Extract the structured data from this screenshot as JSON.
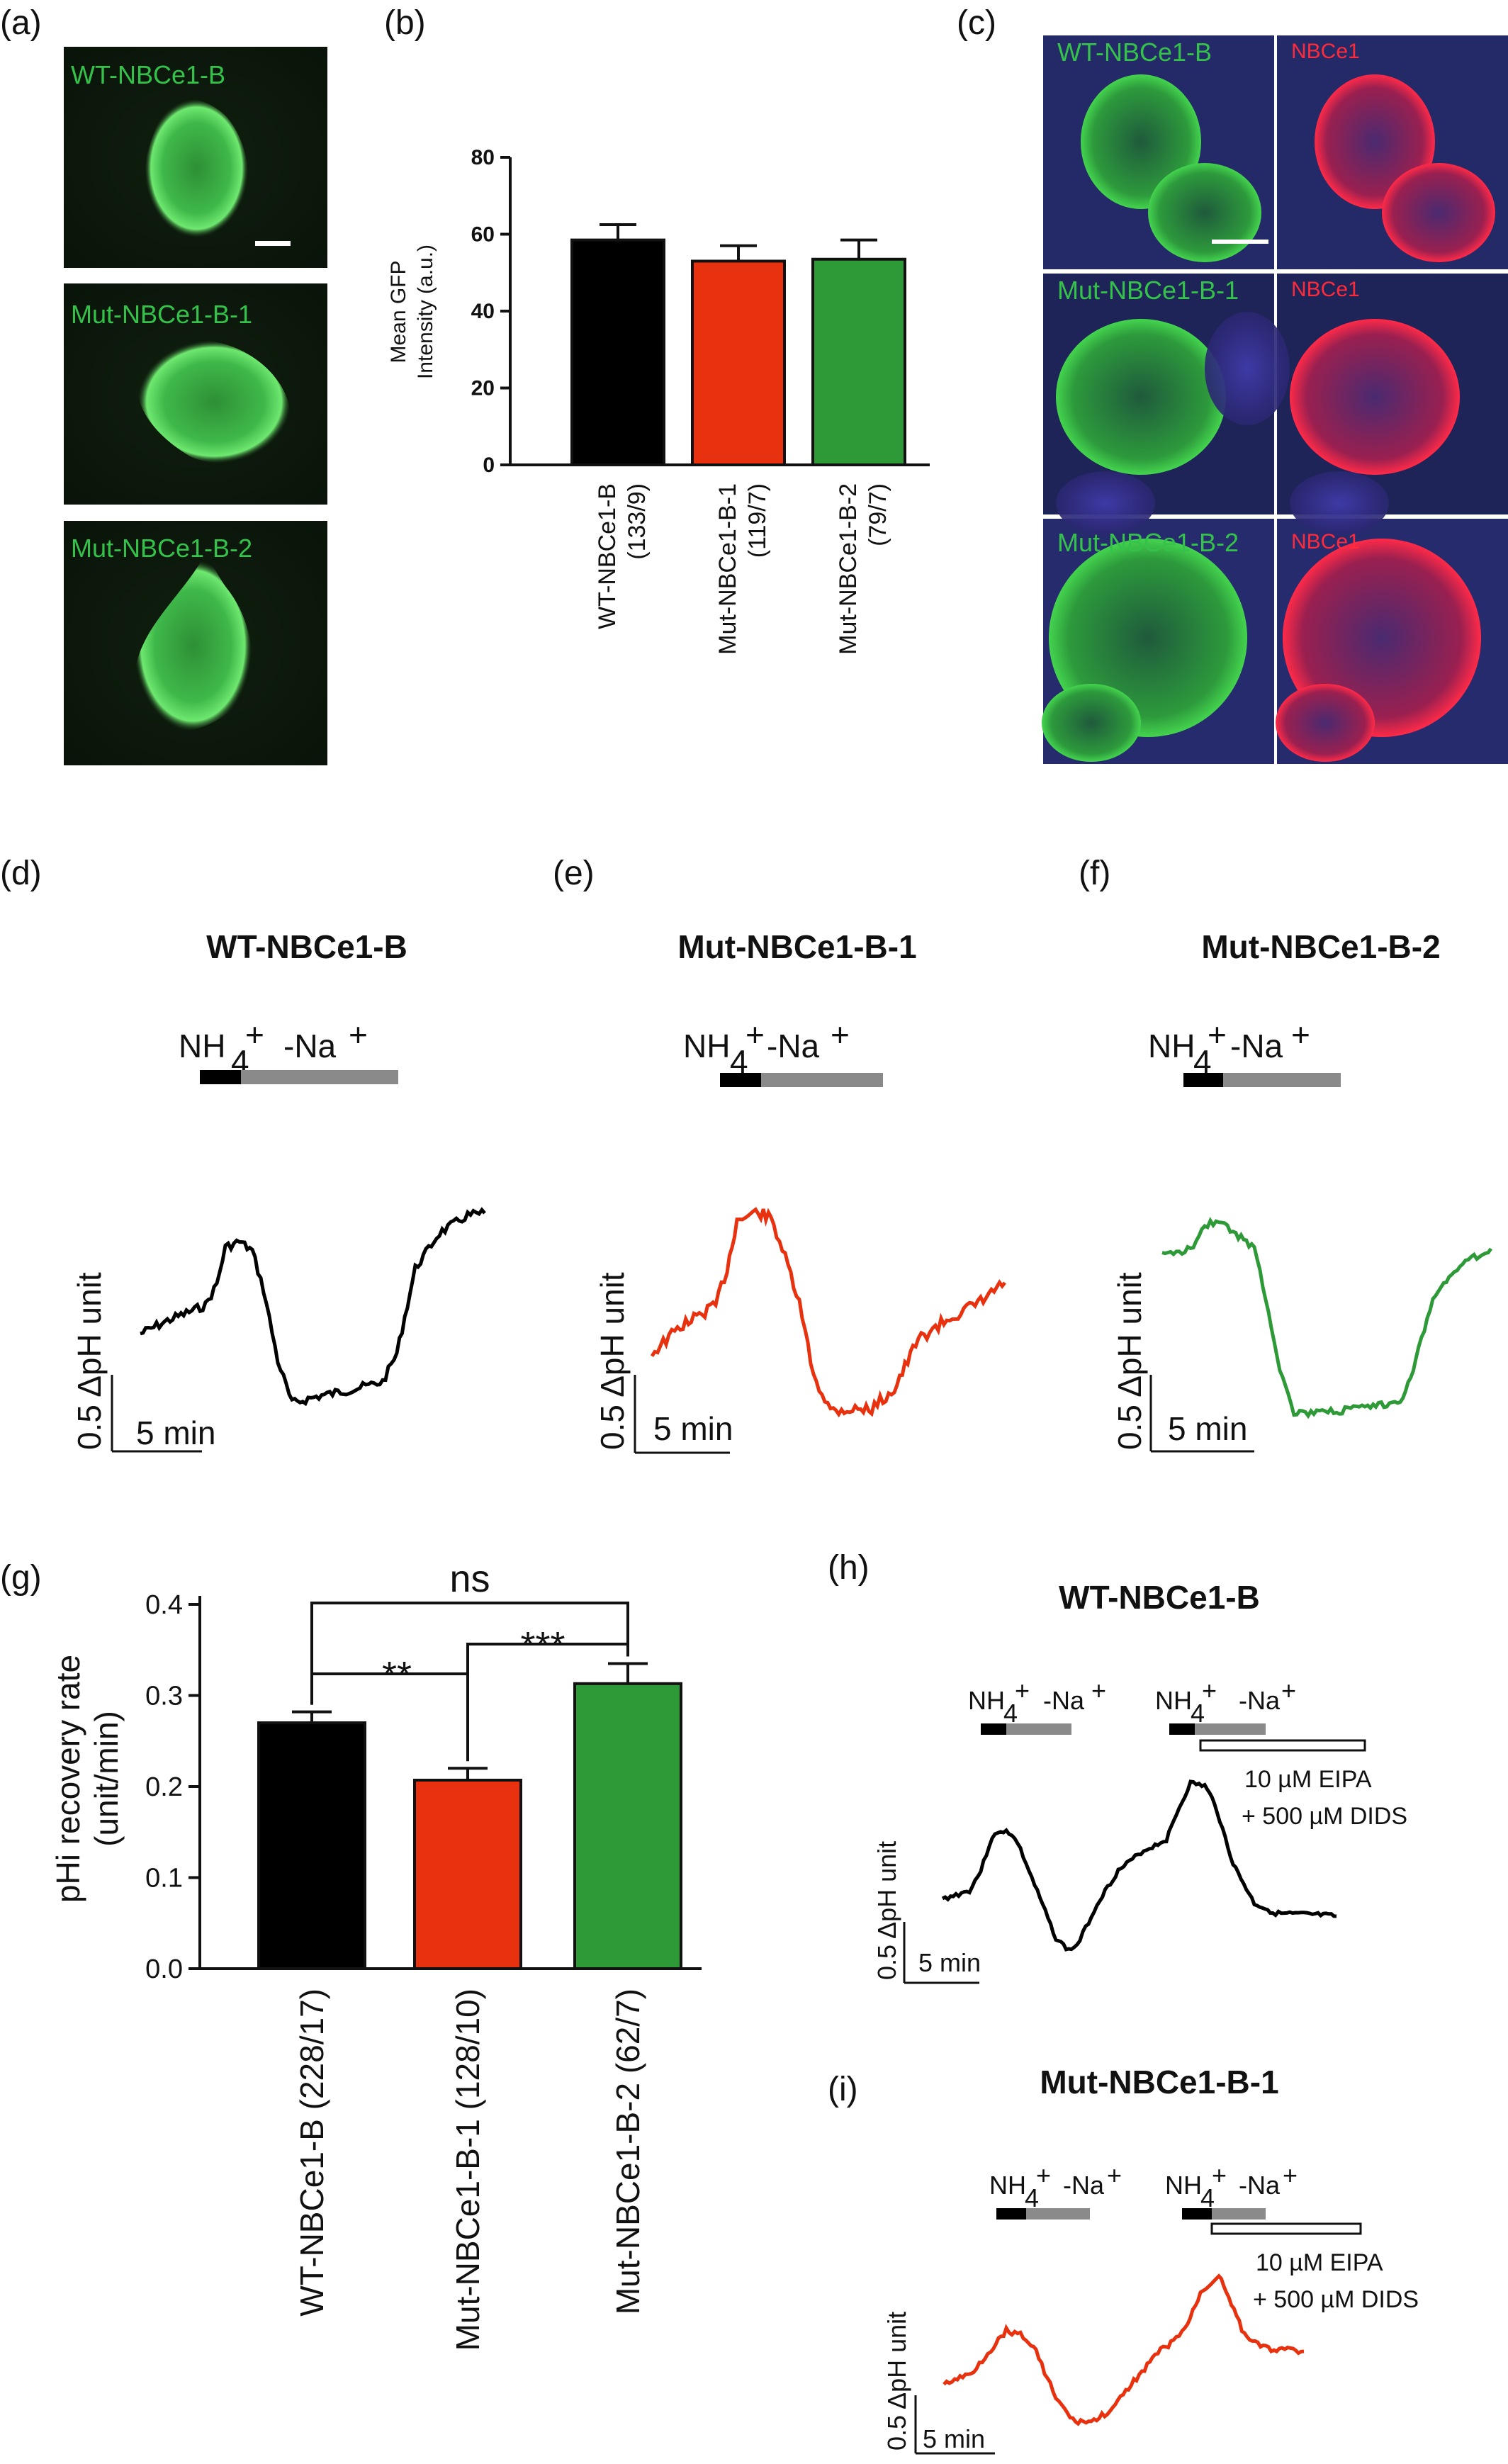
{
  "panels": {
    "a": "(a)",
    "b": "(b)",
    "c": "(c)",
    "d": "(d)",
    "e": "(e)",
    "f": "(f)",
    "g": "(g)",
    "h": "(h)",
    "i": "(i)"
  },
  "micrographs_a": [
    {
      "label": "WT-NBCe1-B"
    },
    {
      "label": "Mut-NBCe1-B-1"
    },
    {
      "label": "Mut-NBCe1-B-2"
    }
  ],
  "micrographs_c": [
    {
      "green_label": "WT-NBCe1-B",
      "red_label": "NBCe1"
    },
    {
      "green_label": "Mut-NBCe1-B-1",
      "red_label": "NBCe1"
    },
    {
      "green_label": "Mut-NBCe1-B-2",
      "red_label": "NBCe1"
    }
  ],
  "colors": {
    "wt": "#000000",
    "mut1": "#e8320f",
    "mut2": "#2e9a37",
    "gfp": "#3fd65a",
    "stain": "#ff2a3a",
    "nucleus": "#3f3aa0"
  },
  "traces": {
    "d": {
      "title": "WT-NBCe1-B"
    },
    "e": {
      "title": "Mut-NBCe1-B-1"
    },
    "f": {
      "title": "Mut-NBCe1-B-2"
    },
    "h": {
      "title": "WT-NBCe1-B",
      "drug_line1": "10 µM EIPA",
      "drug_line2": "+ 500 µM DIDS"
    },
    "i": {
      "title": "Mut-NBCe1-B-1",
      "drug_line1": "10 µM EIPA",
      "drug_line2": "+ 500 µM DIDS"
    }
  },
  "ions": {
    "nh": "NH",
    "sub": "4",
    "sup": "+",
    "na": "-Na",
    "na_sup": "+"
  },
  "scalebar": {
    "ph": "0.5 ΔpH unit",
    "time": "5 min"
  },
  "chart_data": [
    {
      "panel": "b",
      "type": "bar",
      "categories": [
        "WT-NBCe1-B",
        "Mut-NBCe1-B-1",
        "Mut-NBCe1-B-2"
      ],
      "category_counts": [
        "(133/9)",
        "(119/7)",
        "(79/7)"
      ],
      "values": [
        58.5,
        53,
        53.5
      ],
      "errors": [
        4,
        4,
        5
      ],
      "colors": [
        "#000000",
        "#e8320f",
        "#2e9a37"
      ],
      "ylabel_line1": "Mean GFP",
      "ylabel_line2": "Intensity (a.u.)",
      "ylim": [
        0,
        80
      ],
      "yticks": [
        "0",
        "20",
        "40",
        "60",
        "80"
      ]
    },
    {
      "panel": "g",
      "type": "bar",
      "categories": [
        "WT-NBCe1-B (228/17)",
        "Mut-NBCe1-B-1 (128/10)",
        "Mut-NBCe1-B-2 (62/7)"
      ],
      "values": [
        0.27,
        0.207,
        0.313
      ],
      "errors": [
        0.012,
        0.013,
        0.022
      ],
      "colors": [
        "#000000",
        "#e8320f",
        "#2e9a37"
      ],
      "ylabel_line1": "pHi recovery rate",
      "ylabel_line2": "(unit/min)",
      "ylim": [
        0,
        0.4
      ],
      "yticks": [
        "0.0",
        "0.1",
        "0.2",
        "0.3",
        "0.4"
      ],
      "significance": [
        {
          "from": 0,
          "to": 2,
          "label": "ns"
        },
        {
          "from": 0,
          "to": 1,
          "label": "**"
        },
        {
          "from": 1,
          "to": 2,
          "label": "***"
        }
      ]
    }
  ]
}
